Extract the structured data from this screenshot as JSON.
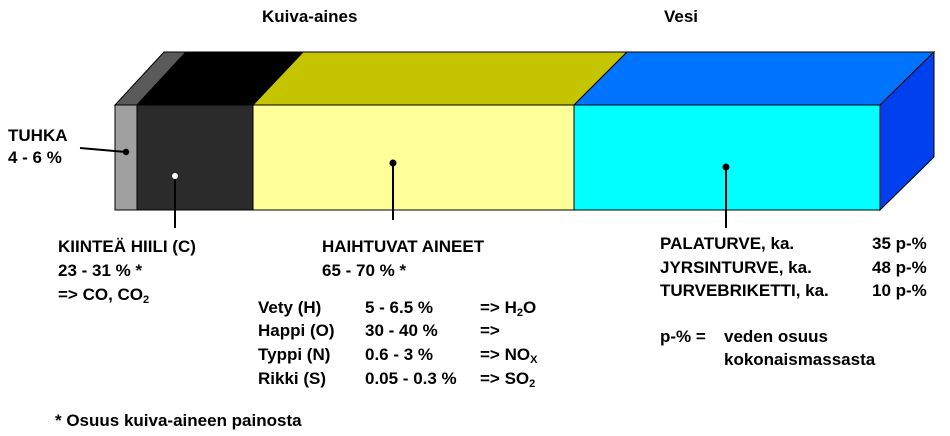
{
  "header": {
    "dry_matter": "Kuiva-aines",
    "water": "Vesi"
  },
  "segments": {
    "ash": {
      "name": "TUHKA",
      "share": "4 - 6 %",
      "colors": {
        "front": "#a0a0a0",
        "top": "#5a5a5a"
      }
    },
    "fixed_carbon": {
      "name": "KIINTEÄ HIILI (C)",
      "share": "23 - 31 % *",
      "product_prefix": "=> CO, CO",
      "product_sub": "2",
      "colors": {
        "front": "#2b2b2b",
        "top": "#000000"
      }
    },
    "volatiles": {
      "name": "HAIHTUVAT AINEET",
      "share": "65 - 70 % *",
      "colors": {
        "front": "#ffff99",
        "top": "#c4c400"
      },
      "rows": [
        {
          "element": "Vety (H)",
          "range": "5 - 6.5 %",
          "product": "=> H",
          "product_sub": "2",
          "product_tail": "O"
        },
        {
          "element": "Happi (O)",
          "range": "30 - 40 %",
          "product": "=>",
          "product_sub": "",
          "product_tail": ""
        },
        {
          "element": "Typpi (N)",
          "range": "0.6 - 3 %",
          "product": "=> NO",
          "product_sub": "X",
          "product_tail": ""
        },
        {
          "element": "Rikki (S)",
          "range": "0.05 - 0.3 %",
          "product": "=> SO",
          "product_sub": "2",
          "product_tail": ""
        }
      ]
    },
    "water": {
      "colors": {
        "front": "#00ffff",
        "top": "#0073ff",
        "side": "#0040ee"
      },
      "rows": [
        {
          "label": "PALATURVE, ka.",
          "value": "35 p-%"
        },
        {
          "label": "JYRSINTURVE, ka.",
          "value": "48 p-%"
        },
        {
          "label": "TURVEBRIKETTI, ka.",
          "value": "10 p-%"
        }
      ],
      "unit_key": "p-% =",
      "unit_desc_1": "veden osuus",
      "unit_desc_2": "kokonaismassasta"
    }
  },
  "footnote": "* Osuus kuiva-aineen painosta"
}
